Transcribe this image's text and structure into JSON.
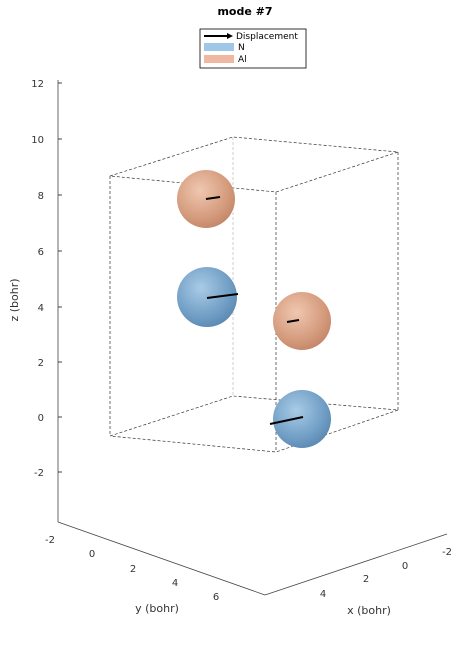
{
  "chart_data": {
    "type": "scatter",
    "title": "mode #7",
    "xlabel": "x (bohr)",
    "ylabel": "y (bohr)",
    "zlabel": "z (bohr)",
    "xticks": [
      "-2",
      "0",
      "2",
      "4"
    ],
    "yticks": [
      "-2",
      "0",
      "2",
      "4",
      "6"
    ],
    "zticks": [
      "-2",
      "0",
      "2",
      "4",
      "6",
      "8",
      "10",
      "12"
    ],
    "zlim": [
      -4,
      12
    ],
    "legend": [
      {
        "name": "Displacement",
        "color": "#000000"
      },
      {
        "name": "N",
        "color": "#9fc8e8"
      },
      {
        "name": "Al",
        "color": "#f0b8a0"
      }
    ],
    "legend_position": "top",
    "atoms": [
      {
        "element": "Al",
        "z": 8.0
      },
      {
        "element": "N",
        "z": 4.2
      },
      {
        "element": "Al",
        "z": 3.4
      },
      {
        "element": "N",
        "z": -0.2
      }
    ]
  },
  "colors": {
    "N_fill": "#7fa9cc",
    "Al_fill": "#d9a285"
  }
}
